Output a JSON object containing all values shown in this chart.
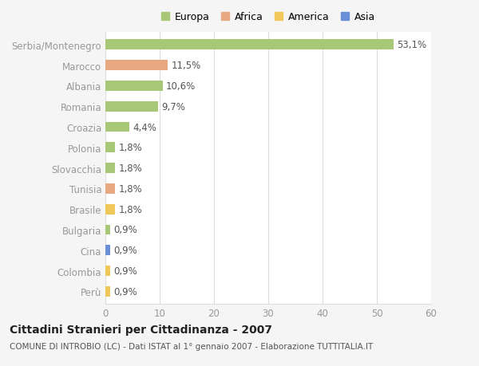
{
  "categories": [
    "Serbia/Montenegro",
    "Marocco",
    "Albania",
    "Romania",
    "Croazia",
    "Polonia",
    "Slovacchia",
    "Tunisia",
    "Brasile",
    "Bulgaria",
    "Cina",
    "Colombia",
    "Perù"
  ],
  "values": [
    53.1,
    11.5,
    10.6,
    9.7,
    4.4,
    1.8,
    1.8,
    1.8,
    1.8,
    0.9,
    0.9,
    0.9,
    0.9
  ],
  "bar_colors": [
    "#a8c878",
    "#e8a882",
    "#a8c878",
    "#a8c878",
    "#a8c878",
    "#a8c878",
    "#a8c878",
    "#e8a882",
    "#f0c85a",
    "#a8c878",
    "#6a8fd8",
    "#f0c85a",
    "#f0c85a"
  ],
  "legend_labels": [
    "Europa",
    "Africa",
    "America",
    "Asia"
  ],
  "legend_colors": [
    "#a8c878",
    "#e8a882",
    "#f0c85a",
    "#6a8fd8"
  ],
  "title": "Cittadini Stranieri per Cittadinanza - 2007",
  "subtitle": "COMUNE DI INTROBIO (LC) - Dati ISTAT al 1° gennaio 2007 - Elaborazione TUTTITALIA.IT",
  "xlim": [
    0,
    60
  ],
  "xticks": [
    0,
    10,
    20,
    30,
    40,
    50,
    60
  ],
  "bg_color": "#f5f5f5",
  "plot_bg_color": "#ffffff",
  "grid_color": "#dddddd",
  "bar_height": 0.5,
  "value_label_color": "#555555",
  "axis_label_color": "#999999",
  "title_fontsize": 10,
  "subtitle_fontsize": 7.5,
  "tick_fontsize": 8.5,
  "value_fontsize": 8.5
}
